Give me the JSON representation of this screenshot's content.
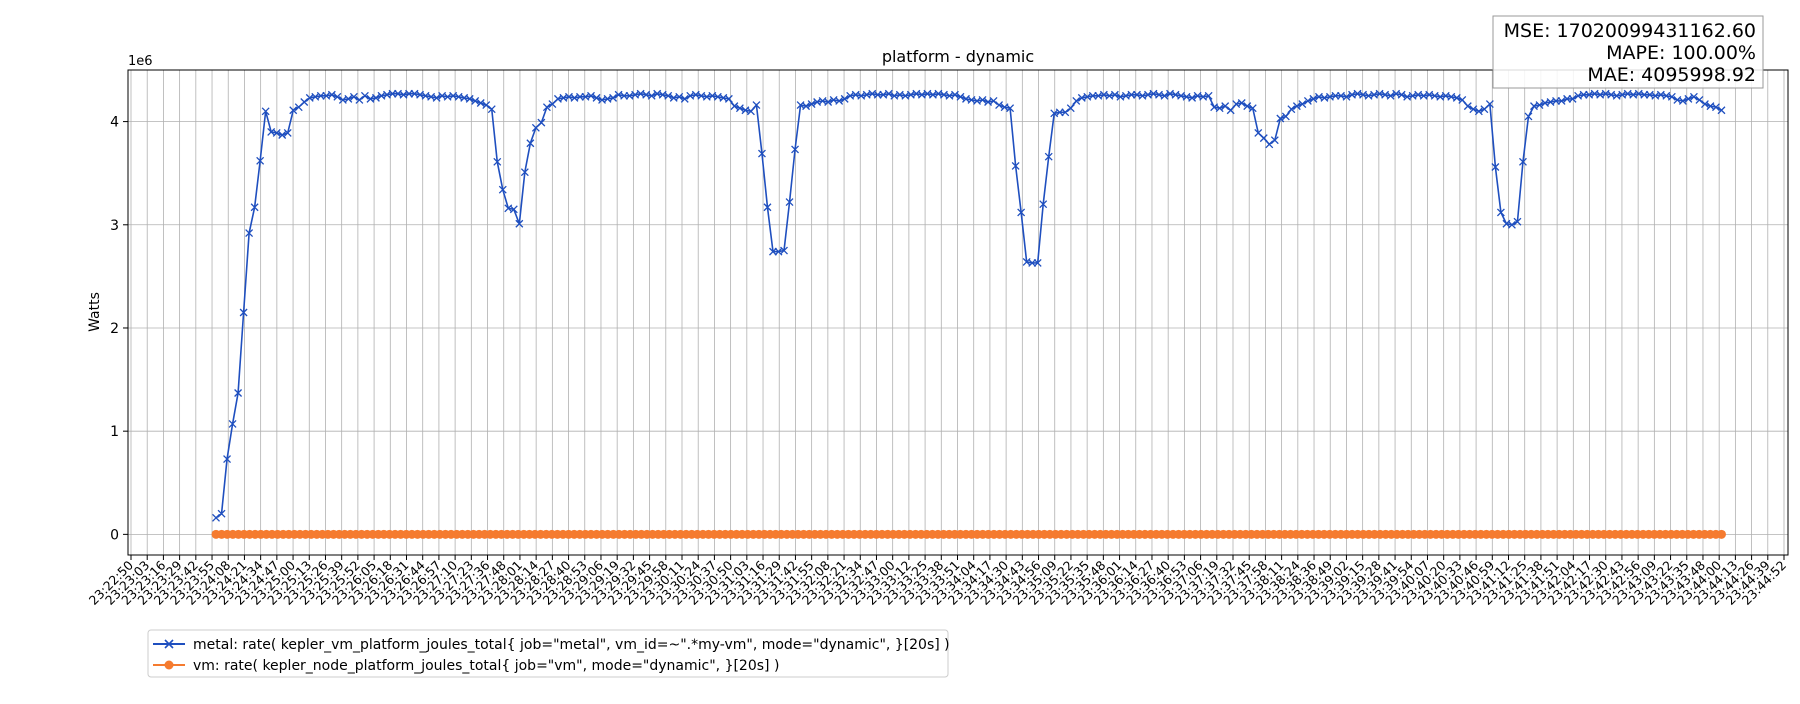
{
  "chart_data": {
    "type": "line",
    "title": "platform - dynamic",
    "ylabel": "Watts",
    "xlabel": "",
    "y_scale_label": "1e6",
    "ylim": [
      -200000,
      4500000
    ],
    "yticks": [
      0,
      1,
      2,
      3,
      4
    ],
    "grid": true,
    "legend_position": "bottom-left",
    "x_ticks": [
      "23:22:50",
      "23:23:03",
      "23:23:16",
      "23:23:29",
      "23:23:42",
      "23:23:55",
      "23:24:08",
      "23:24:21",
      "23:24:34",
      "23:24:47",
      "23:25:00",
      "23:25:13",
      "23:25:26",
      "23:25:39",
      "23:25:52",
      "23:26:05",
      "23:26:18",
      "23:26:31",
      "23:26:44",
      "23:26:57",
      "23:27:10",
      "23:27:23",
      "23:27:36",
      "23:27:48",
      "23:28:01",
      "23:28:14",
      "23:28:27",
      "23:28:40",
      "23:28:53",
      "23:29:06",
      "23:29:19",
      "23:29:32",
      "23:29:45",
      "23:29:58",
      "23:30:11",
      "23:30:24",
      "23:30:37",
      "23:30:50",
      "23:31:03",
      "23:31:16",
      "23:31:29",
      "23:31:42",
      "23:31:55",
      "23:32:08",
      "23:32:21",
      "23:32:34",
      "23:32:47",
      "23:33:00",
      "23:33:12",
      "23:33:25",
      "23:33:38",
      "23:33:51",
      "23:34:04",
      "23:34:17",
      "23:34:30",
      "23:34:43",
      "23:34:56",
      "23:35:09",
      "23:35:22",
      "23:35:35",
      "23:35:48",
      "23:36:01",
      "23:36:14",
      "23:36:27",
      "23:36:40",
      "23:36:53",
      "23:37:06",
      "23:37:19",
      "23:37:32",
      "23:37:45",
      "23:37:58",
      "23:38:11",
      "23:38:24",
      "23:38:36",
      "23:38:49",
      "23:39:02",
      "23:39:15",
      "23:39:28",
      "23:39:41",
      "23:39:54",
      "23:40:07",
      "23:40:20",
      "23:40:33",
      "23:40:46",
      "23:40:59",
      "23:41:12",
      "23:41:25",
      "23:41:38",
      "23:41:51",
      "23:42:04",
      "23:42:17",
      "23:42:30",
      "23:42:43",
      "23:42:56",
      "23:43:09",
      "23:43:22",
      "23:43:35",
      "23:43:48",
      "23:44:00",
      "23:44:13",
      "23:44:26",
      "23:44:39",
      "23:44:52"
    ],
    "x_start": "23:23:58",
    "x_end": "23:44:02",
    "series": [
      {
        "name": "metal: rate( kepler_vm_platform_joules_total{ job=\"metal\", vm_id=~\".*my-vm\", mode=\"dynamic\", }[20s] )",
        "color": "#1f4fbf",
        "marker": "x",
        "values": [
          160000,
          200000,
          730000,
          1070000,
          1370000,
          2150000,
          2920000,
          3170000,
          3620000,
          4100000,
          3900000,
          3890000,
          3870000,
          3890000,
          4110000,
          4140000,
          4190000,
          4230000,
          4240000,
          4250000,
          4250000,
          4260000,
          4240000,
          4210000,
          4220000,
          4240000,
          4210000,
          4250000,
          4220000,
          4230000,
          4250000,
          4260000,
          4270000,
          4270000,
          4260000,
          4270000,
          4270000,
          4260000,
          4250000,
          4240000,
          4230000,
          4250000,
          4240000,
          4250000,
          4240000,
          4230000,
          4220000,
          4200000,
          4180000,
          4160000,
          4120000,
          3610000,
          3340000,
          3160000,
          3150000,
          3010000,
          3510000,
          3790000,
          3940000,
          3990000,
          4140000,
          4170000,
          4220000,
          4230000,
          4240000,
          4230000,
          4240000,
          4240000,
          4250000,
          4230000,
          4210000,
          4220000,
          4230000,
          4260000,
          4250000,
          4250000,
          4260000,
          4270000,
          4260000,
          4250000,
          4270000,
          4260000,
          4250000,
          4230000,
          4240000,
          4220000,
          4250000,
          4260000,
          4250000,
          4240000,
          4250000,
          4240000,
          4230000,
          4220000,
          4150000,
          4130000,
          4110000,
          4100000,
          4160000,
          3690000,
          3170000,
          2740000,
          2740000,
          2750000,
          3220000,
          3730000,
          4160000,
          4150000,
          4170000,
          4190000,
          4200000,
          4190000,
          4210000,
          4200000,
          4220000,
          4250000,
          4260000,
          4250000,
          4260000,
          4270000,
          4260000,
          4260000,
          4270000,
          4250000,
          4260000,
          4250000,
          4260000,
          4270000,
          4260000,
          4270000,
          4260000,
          4270000,
          4260000,
          4250000,
          4260000,
          4240000,
          4220000,
          4210000,
          4200000,
          4210000,
          4190000,
          4200000,
          4160000,
          4140000,
          4130000,
          3570000,
          3120000,
          2640000,
          2630000,
          2630000,
          3200000,
          3660000,
          4080000,
          4090000,
          4090000,
          4130000,
          4200000,
          4230000,
          4240000,
          4250000,
          4250000,
          4260000,
          4250000,
          4260000,
          4240000,
          4250000,
          4260000,
          4260000,
          4250000,
          4260000,
          4270000,
          4260000,
          4250000,
          4270000,
          4260000,
          4250000,
          4240000,
          4230000,
          4250000,
          4240000,
          4250000,
          4140000,
          4130000,
          4150000,
          4110000,
          4170000,
          4180000,
          4150000,
          4130000,
          3890000,
          3840000,
          3780000,
          3820000,
          4030000,
          4050000,
          4120000,
          4150000,
          4170000,
          4200000,
          4220000,
          4240000,
          4230000,
          4240000,
          4250000,
          4250000,
          4240000,
          4260000,
          4270000,
          4260000,
          4250000,
          4260000,
          4270000,
          4260000,
          4250000,
          4270000,
          4260000,
          4240000,
          4250000,
          4260000,
          4250000,
          4260000,
          4250000,
          4240000,
          4250000,
          4240000,
          4230000,
          4210000,
          4150000,
          4120000,
          4100000,
          4120000,
          4170000,
          3560000,
          3120000,
          3010000,
          3000000,
          3030000,
          3610000,
          4050000,
          4150000,
          4160000,
          4180000,
          4190000,
          4200000,
          4200000,
          4220000,
          4220000,
          4250000,
          4260000,
          4260000,
          4270000,
          4260000,
          4270000,
          4260000,
          4250000,
          4260000,
          4270000,
          4260000,
          4270000,
          4260000,
          4260000,
          4250000,
          4260000,
          4250000,
          4240000,
          4210000,
          4200000,
          4220000,
          4240000,
          4210000,
          4170000,
          4150000,
          4140000,
          4110000
        ]
      },
      {
        "name": "vm: rate( kepler_node_platform_joules_total{ job=\"vm\", mode=\"dynamic\", }[20s] )",
        "color": "#f57b2f",
        "marker": "o",
        "values": [
          0,
          0,
          0,
          0,
          0,
          0,
          0,
          0,
          0,
          0,
          0,
          0,
          0,
          0,
          0,
          0,
          0,
          0,
          0,
          0,
          0,
          0,
          0,
          0,
          0,
          0,
          0,
          0,
          0,
          0,
          0,
          0,
          0,
          0,
          0,
          0,
          0,
          0,
          0,
          0,
          0,
          0,
          0,
          0,
          0,
          0,
          0,
          0,
          0,
          0,
          0,
          0,
          0,
          0,
          0,
          0,
          0,
          0,
          0,
          0,
          0,
          0,
          0,
          0,
          0,
          0,
          0,
          0,
          0,
          0,
          0,
          0,
          0,
          0,
          0,
          0,
          0,
          0,
          0,
          0,
          0,
          0,
          0,
          0,
          0,
          0,
          0,
          0,
          0,
          0,
          0,
          0,
          0,
          0,
          0,
          0,
          0,
          0,
          0,
          0,
          0,
          0,
          0,
          0,
          0,
          0,
          0,
          0,
          0,
          0,
          0,
          0,
          0,
          0,
          0,
          0,
          0,
          0,
          0,
          0,
          0,
          0,
          0,
          0,
          0,
          0,
          0,
          0,
          0,
          0,
          0,
          0,
          0,
          0,
          0,
          0,
          0,
          0,
          0,
          0,
          0,
          0,
          0,
          0,
          0,
          0,
          0,
          0,
          0,
          0,
          0,
          0,
          0,
          0,
          0,
          0,
          0,
          0,
          0,
          0,
          0,
          0,
          0,
          0,
          0,
          0,
          0,
          0,
          0,
          0,
          0,
          0,
          0,
          0,
          0,
          0,
          0,
          0,
          0,
          0,
          0,
          0,
          0,
          0,
          0,
          0,
          0,
          0,
          0,
          0,
          0,
          0,
          0,
          0,
          0,
          0,
          0,
          0,
          0,
          0,
          0,
          0,
          0,
          0,
          0,
          0,
          0,
          0,
          0,
          0,
          0,
          0,
          0,
          0,
          0,
          0,
          0,
          0,
          0,
          0,
          0,
          0,
          0,
          0,
          0,
          0,
          0,
          0,
          0,
          0,
          0,
          0,
          0,
          0,
          0,
          0,
          0,
          0,
          0,
          0,
          0,
          0,
          0,
          0,
          0,
          0,
          0,
          0,
          0,
          0,
          0,
          0,
          0,
          0,
          0,
          0,
          0,
          0,
          0,
          0,
          0,
          0,
          0,
          0,
          0,
          0,
          0,
          0,
          0,
          0
        ]
      }
    ],
    "annotations": {
      "mse": "MSE: 17020099431162.60",
      "mape": "MAPE: 100.00%",
      "mae": "MAE: 4095998.92"
    }
  }
}
